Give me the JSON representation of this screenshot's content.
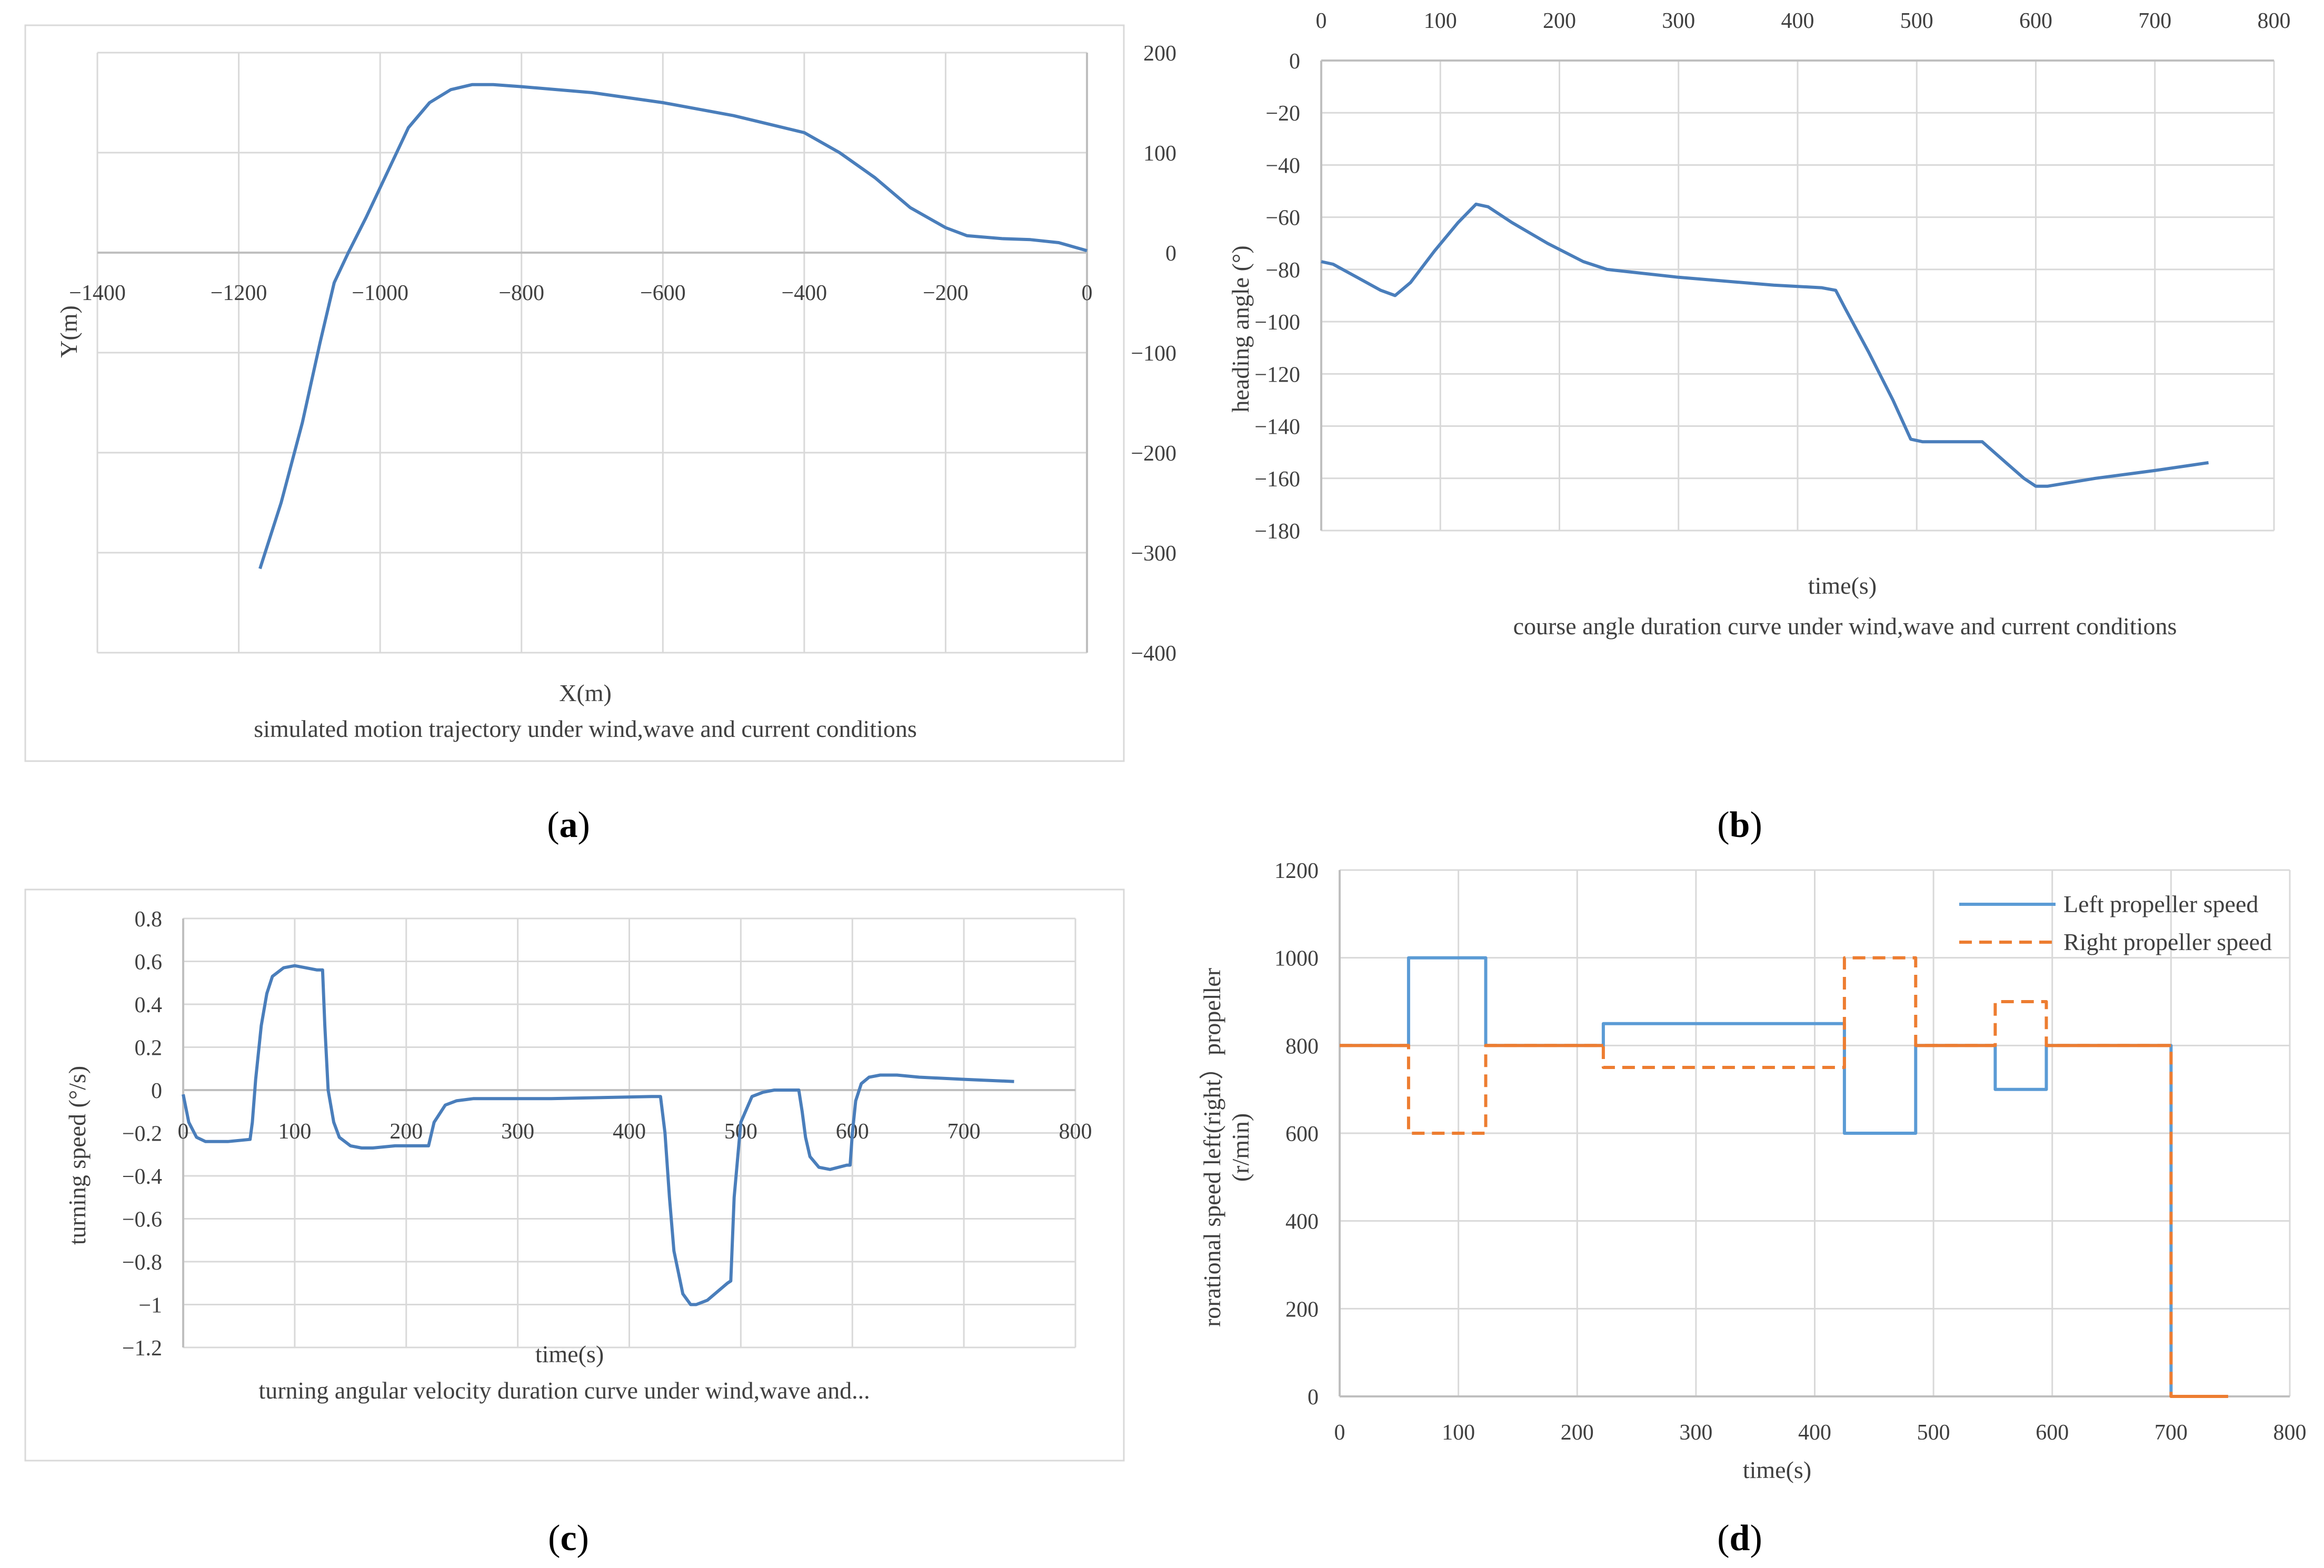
{
  "panel_labels": {
    "a": "a",
    "b": "b",
    "c": "c",
    "d": "d"
  },
  "chart_data": [
    {
      "id": "a",
      "type": "line",
      "caption": "simulated motion trajectory under wind,wave and current conditions",
      "xlabel": "X(m)",
      "ylabel": "Y(m)",
      "xlim": [
        -1400,
        0
      ],
      "ylim": [
        -400,
        200
      ],
      "xticks": [
        -1400,
        -1200,
        -1000,
        -800,
        -600,
        -400,
        -200,
        0
      ],
      "yticks": [
        200,
        100,
        0,
        -100,
        -200,
        -300,
        -400
      ],
      "xtick_labels": [
        "−1400",
        "−1200",
        "−1000",
        "−800",
        "−600",
        "−400",
        "−200",
        "0"
      ],
      "ytick_labels": [
        "200",
        "100",
        "0",
        "−100",
        "−200",
        "−300",
        "−400"
      ],
      "series": [
        {
          "name": "trajectory",
          "color": "#4a7ebb",
          "x": [
            -1170,
            -1140,
            -1110,
            -1085,
            -1065,
            -1045,
            -1020,
            -990,
            -960,
            -930,
            -900,
            -870,
            -840,
            -800,
            -700,
            -600,
            -500,
            -400,
            -350,
            -300,
            -250,
            -200,
            -170,
            -120,
            -80,
            -40,
            -20,
            0
          ],
          "y": [
            -316,
            -250,
            -170,
            -90,
            -30,
            0,
            35,
            80,
            125,
            150,
            163,
            168,
            168,
            166,
            160,
            150,
            137,
            120,
            100,
            75,
            45,
            25,
            17,
            14,
            13,
            10,
            6,
            2
          ]
        }
      ]
    },
    {
      "id": "b",
      "type": "line",
      "caption": "course angle duration curve under wind,wave and current conditions",
      "xlabel": "time(s)",
      "ylabel": "heading angle (°)",
      "xlim": [
        0,
        800
      ],
      "ylim": [
        -180,
        0
      ],
      "xticks": [
        0,
        100,
        200,
        300,
        400,
        500,
        600,
        700,
        800
      ],
      "yticks": [
        0,
        -20,
        -40,
        -60,
        -80,
        -100,
        -120,
        -140,
        -160,
        -180
      ],
      "xtick_labels": [
        "0",
        "100",
        "200",
        "300",
        "400",
        "500",
        "600",
        "700",
        "800"
      ],
      "ytick_labels": [
        "0",
        "−20",
        "−40",
        "−60",
        "−80",
        "−100",
        "−120",
        "−140",
        "−160",
        "−180"
      ],
      "series": [
        {
          "name": "heading",
          "color": "#4a7ebb",
          "x": [
            0,
            10,
            30,
            50,
            62,
            75,
            95,
            115,
            130,
            140,
            160,
            190,
            220,
            240,
            300,
            380,
            420,
            432,
            440,
            460,
            480,
            495,
            505,
            555,
            575,
            590,
            600,
            610,
            650,
            700,
            730,
            745
          ],
          "y": [
            -77,
            -78,
            -83,
            -88,
            -90,
            -85,
            -73,
            -62,
            -55,
            -56,
            -62,
            -70,
            -77,
            -80,
            -83,
            -86,
            -87,
            -88,
            -95,
            -112,
            -130,
            -145,
            -146,
            -146,
            -154,
            -160,
            -163,
            -163,
            -160,
            -157,
            -155,
            -154
          ]
        }
      ]
    },
    {
      "id": "c",
      "type": "line",
      "caption": "turning angular velocity duration curve under wind,wave and...",
      "xlabel": "time(s)",
      "ylabel": "turning speed (°/s)",
      "xlim": [
        0,
        800
      ],
      "ylim": [
        -1.2,
        0.8
      ],
      "xticks": [
        0,
        100,
        200,
        300,
        400,
        500,
        600,
        700,
        800
      ],
      "yticks": [
        0.8,
        0.6,
        0.4,
        0.2,
        0,
        -0.2,
        -0.4,
        -0.6,
        -0.8,
        -1,
        -1.2
      ],
      "xtick_labels": [
        "0",
        "100",
        "200",
        "300",
        "400",
        "500",
        "600",
        "700",
        "800"
      ],
      "ytick_labels": [
        "0.8",
        "0.6",
        "0.4",
        "0.2",
        "0",
        "−0.2",
        "−0.4",
        "−0.6",
        "−0.8",
        "−1",
        "−1.2"
      ],
      "series": [
        {
          "name": "turning speed",
          "color": "#4a7ebb",
          "x": [
            0,
            5,
            12,
            20,
            40,
            60,
            62,
            65,
            70,
            75,
            80,
            90,
            100,
            110,
            120,
            125,
            127,
            130,
            135,
            140,
            150,
            160,
            170,
            190,
            210,
            220,
            225,
            235,
            245,
            260,
            300,
            330,
            420,
            428,
            432,
            436,
            440,
            448,
            455,
            460,
            470,
            488,
            491,
            494,
            500,
            510,
            520,
            530,
            552,
            555,
            558,
            562,
            570,
            580,
            595,
            598,
            600,
            603,
            608,
            615,
            625,
            640,
            660,
            700,
            745
          ],
          "y": [
            -0.02,
            -0.15,
            -0.22,
            -0.24,
            -0.24,
            -0.23,
            -0.15,
            0.05,
            0.3,
            0.45,
            0.53,
            0.57,
            0.58,
            0.57,
            0.56,
            0.56,
            0.3,
            0.0,
            -0.15,
            -0.22,
            -0.26,
            -0.27,
            -0.27,
            -0.26,
            -0.26,
            -0.26,
            -0.15,
            -0.07,
            -0.05,
            -0.04,
            -0.04,
            -0.04,
            -0.03,
            -0.03,
            -0.2,
            -0.5,
            -0.75,
            -0.95,
            -1.0,
            -1.0,
            -0.98,
            -0.9,
            -0.89,
            -0.5,
            -0.15,
            -0.03,
            -0.01,
            0.0,
            0.0,
            -0.1,
            -0.22,
            -0.31,
            -0.36,
            -0.37,
            -0.35,
            -0.35,
            -0.2,
            -0.05,
            0.03,
            0.06,
            0.07,
            0.07,
            0.06,
            0.05,
            0.04
          ]
        }
      ]
    },
    {
      "id": "d",
      "type": "line",
      "caption": "",
      "xlabel": "time(s)",
      "ylabel": "rorational speed left(right）propeller (r/min)",
      "ylabel_line1": "rorational speed left(right）propeller",
      "ylabel_line2": "(r/min)",
      "xlim": [
        0,
        800
      ],
      "ylim": [
        0,
        1200
      ],
      "xticks": [
        0,
        100,
        200,
        300,
        400,
        500,
        600,
        700,
        800
      ],
      "yticks": [
        1200,
        1000,
        800,
        600,
        400,
        200,
        0
      ],
      "xtick_labels": [
        "0",
        "100",
        "200",
        "300",
        "400",
        "500",
        "600",
        "700",
        "800"
      ],
      "ytick_labels": [
        "1200",
        "1000",
        "800",
        "600",
        "400",
        "200",
        "0"
      ],
      "legend_position": "top-right",
      "series": [
        {
          "name": "Left propeller speed",
          "color": "#5b9bd5",
          "dash": false,
          "x": [
            0,
            58,
            58,
            123,
            123,
            222,
            222,
            425,
            425,
            485,
            485,
            552,
            552,
            595,
            595,
            700,
            700,
            748
          ],
          "y": [
            800,
            800,
            1000,
            1000,
            800,
            800,
            850,
            850,
            600,
            600,
            800,
            800,
            700,
            700,
            800,
            800,
            0,
            0
          ]
        },
        {
          "name": "Right propeller speed",
          "color": "#ed7d31",
          "dash": true,
          "x": [
            0,
            58,
            58,
            123,
            123,
            222,
            222,
            425,
            425,
            485,
            485,
            552,
            552,
            595,
            595,
            700,
            700,
            748
          ],
          "y": [
            800,
            800,
            600,
            600,
            800,
            800,
            750,
            750,
            1000,
            1000,
            800,
            800,
            900,
            900,
            800,
            800,
            0,
            0
          ]
        }
      ],
      "solid_overlay": {
        "color": "#ed7d31",
        "segments": [
          [
            [
              0,
              800
            ],
            [
              58,
              800
            ]
          ],
          [
            [
              123,
              800
            ],
            [
              222,
              800
            ]
          ],
          [
            [
              485,
              800
            ],
            [
              552,
              800
            ]
          ],
          [
            [
              595,
              800
            ],
            [
              700,
              800
            ]
          ],
          [
            [
              700,
              0
            ],
            [
              748,
              0
            ]
          ]
        ]
      }
    }
  ]
}
